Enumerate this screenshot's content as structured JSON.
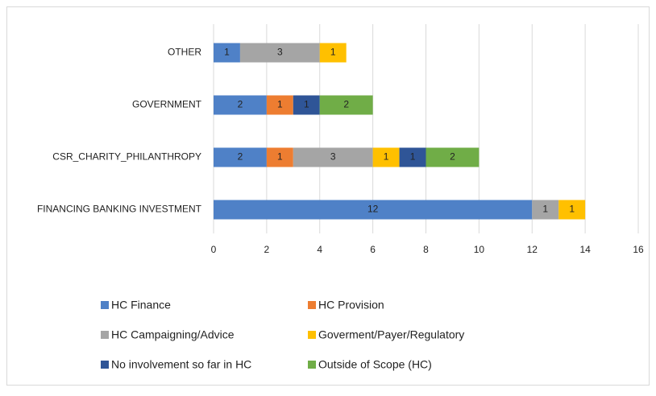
{
  "chart_data": {
    "type": "bar",
    "orientation": "horizontal",
    "stacked": true,
    "categories": [
      "OTHER",
      "GOVERNMENT",
      "CSR_CHARITY_PHILANTHROPY",
      "FINANCING BANKING INVESTMENT"
    ],
    "series": [
      {
        "name": "HC Finance",
        "color": "#4f81c7",
        "values": [
          1,
          2,
          2,
          12
        ]
      },
      {
        "name": "HC Provision",
        "color": "#ed7d31",
        "values": [
          null,
          1,
          1,
          null
        ]
      },
      {
        "name": "HC Campaigning/Advice",
        "color": "#a5a5a5",
        "values": [
          3,
          null,
          3,
          1
        ]
      },
      {
        "name": "Goverment/Payer/Regulatory",
        "color": "#ffc000",
        "values": [
          1,
          null,
          1,
          1
        ]
      },
      {
        "name": "No involvement so far in HC",
        "color": "#2f5597",
        "values": [
          null,
          1,
          1,
          null
        ]
      },
      {
        "name": "Outside of Scope (HC)",
        "color": "#70ad47",
        "values": [
          null,
          2,
          2,
          null
        ]
      }
    ],
    "xlim": [
      0,
      16
    ],
    "xticks": [
      0,
      2,
      4,
      6,
      8,
      10,
      12,
      14,
      16
    ],
    "grid": true,
    "legend": "bottom"
  }
}
